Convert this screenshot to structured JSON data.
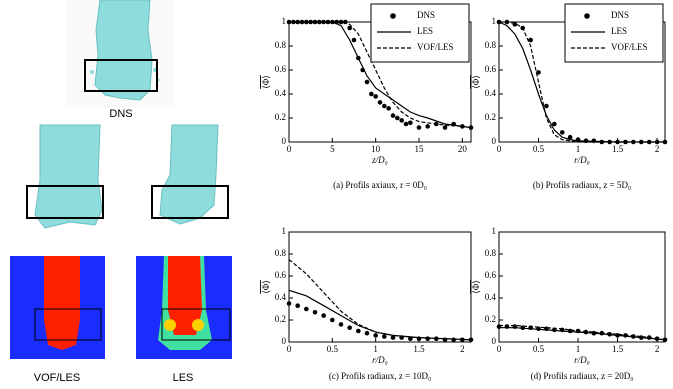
{
  "figure_labels": {
    "top": "DNS",
    "bottom_left": "VOF/LES",
    "bottom_right": "LES"
  },
  "chart_data": [
    {
      "type": "line",
      "caption": "(a) Profils axiaux, r = 0D₀",
      "x_label": "z/D₀",
      "y_label": "⟨Φ⟩",
      "xlim": [
        0,
        21
      ],
      "xticks": [
        0,
        5,
        10,
        15,
        20
      ],
      "ylim": [
        0,
        1
      ],
      "yticks": [
        0,
        0.2,
        0.4,
        0.6,
        0.8,
        1
      ],
      "series": [
        {
          "name": "DNS",
          "style": "markers",
          "color": "#000000",
          "x": [
            0,
            0.5,
            1,
            1.5,
            2,
            2.5,
            3,
            3.5,
            4,
            4.5,
            5,
            5.5,
            6,
            6.5,
            7,
            7.5,
            8,
            8.5,
            9,
            9.5,
            10,
            10.5,
            11,
            11.5,
            12,
            12.5,
            13,
            13.5,
            14,
            15,
            16,
            17,
            18,
            19,
            20,
            21
          ],
          "values": [
            1,
            1,
            1,
            1,
            1,
            1,
            1,
            1,
            1,
            1,
            1,
            1,
            1,
            1,
            0.95,
            0.85,
            0.7,
            0.6,
            0.5,
            0.4,
            0.38,
            0.33,
            0.3,
            0.28,
            0.22,
            0.2,
            0.18,
            0.15,
            0.16,
            0.12,
            0.13,
            0.15,
            0.12,
            0.15,
            0.13,
            0.12
          ]
        },
        {
          "name": "LES",
          "style": "solid",
          "color": "#000000",
          "x": [
            0,
            5,
            6,
            7,
            8,
            9,
            10,
            11,
            12,
            13,
            14,
            15,
            16,
            18,
            20,
            21
          ],
          "values": [
            1,
            1,
            0.97,
            0.85,
            0.7,
            0.55,
            0.45,
            0.4,
            0.35,
            0.3,
            0.25,
            0.22,
            0.2,
            0.15,
            0.13,
            0.12
          ]
        },
        {
          "name": "VOF/LES",
          "style": "dashed",
          "color": "#000000",
          "x": [
            0,
            6,
            7,
            8,
            9,
            10,
            11,
            12,
            13,
            14,
            15,
            16,
            18,
            20,
            21
          ],
          "values": [
            1,
            1,
            0.98,
            0.9,
            0.75,
            0.6,
            0.45,
            0.33,
            0.25,
            0.2,
            0.17,
            0.16,
            0.14,
            0.13,
            0.12
          ]
        }
      ]
    },
    {
      "type": "line",
      "caption": "(b) Profils radiaux, z = 5D₀",
      "x_label": "r/D₀",
      "y_label": "⟨Φ⟩",
      "xlim": [
        0,
        2.1
      ],
      "xticks": [
        0,
        0.5,
        1,
        1.5,
        2
      ],
      "ylim": [
        0,
        1
      ],
      "yticks": [
        0,
        0.2,
        0.4,
        0.6,
        0.8,
        1
      ],
      "series": [
        {
          "name": "DNS",
          "style": "markers",
          "color": "#000000",
          "x": [
            0,
            0.1,
            0.2,
            0.3,
            0.4,
            0.5,
            0.6,
            0.7,
            0.8,
            0.9,
            1,
            1.1,
            1.2,
            1.3,
            1.4,
            1.5,
            1.6,
            1.7,
            1.8,
            1.9,
            2,
            2.1
          ],
          "values": [
            1,
            1,
            0.98,
            0.95,
            0.85,
            0.58,
            0.3,
            0.15,
            0.08,
            0.04,
            0.02,
            0.01,
            0.01,
            0,
            0,
            0,
            0,
            0,
            0,
            0,
            0,
            0
          ]
        },
        {
          "name": "LES",
          "style": "solid",
          "color": "#000000",
          "x": [
            0,
            0.1,
            0.2,
            0.3,
            0.4,
            0.5,
            0.6,
            0.7,
            0.8,
            0.9,
            1,
            1.5,
            2.1
          ],
          "values": [
            1,
            0.97,
            0.9,
            0.78,
            0.6,
            0.4,
            0.22,
            0.1,
            0.04,
            0.02,
            0.01,
            0,
            0
          ]
        },
        {
          "name": "VOF/LES",
          "style": "dashed",
          "color": "#000000",
          "x": [
            0,
            0.1,
            0.2,
            0.3,
            0.4,
            0.5,
            0.6,
            0.7,
            0.8,
            0.9,
            1,
            1.5,
            2.1
          ],
          "values": [
            1,
            1,
            0.99,
            0.95,
            0.8,
            0.5,
            0.2,
            0.06,
            0.02,
            0.01,
            0,
            0,
            0
          ]
        }
      ]
    },
    {
      "type": "line",
      "caption": "(c) Profils radiaux, z = 10D₀",
      "x_label": "r/D₀",
      "y_label": "⟨Φ⟩",
      "xlim": [
        0,
        2.1
      ],
      "xticks": [
        0,
        0.5,
        1,
        1.5,
        2
      ],
      "ylim": [
        0,
        1
      ],
      "yticks": [
        0,
        0.2,
        0.4,
        0.6,
        0.8,
        1
      ],
      "series": [
        {
          "name": "DNS",
          "style": "markers",
          "color": "#000000",
          "x": [
            0,
            0.1,
            0.2,
            0.3,
            0.4,
            0.5,
            0.6,
            0.7,
            0.8,
            0.9,
            1,
            1.1,
            1.2,
            1.3,
            1.4,
            1.5,
            1.6,
            1.7,
            1.8,
            1.9,
            2,
            2.1
          ],
          "values": [
            0.35,
            0.33,
            0.3,
            0.27,
            0.24,
            0.2,
            0.16,
            0.13,
            0.1,
            0.08,
            0.06,
            0.05,
            0.04,
            0.04,
            0.03,
            0.03,
            0.03,
            0.03,
            0.02,
            0.02,
            0.02,
            0.02
          ]
        },
        {
          "name": "LES",
          "style": "solid",
          "color": "#000000",
          "x": [
            0,
            0.2,
            0.4,
            0.6,
            0.8,
            1,
            1.2,
            1.5,
            1.8,
            2.1
          ],
          "values": [
            0.47,
            0.42,
            0.33,
            0.24,
            0.15,
            0.09,
            0.06,
            0.04,
            0.03,
            0.02
          ]
        },
        {
          "name": "VOF/LES",
          "style": "dashed",
          "color": "#000000",
          "x": [
            0,
            0.2,
            0.4,
            0.6,
            0.8,
            1,
            1.2,
            1.5,
            1.8,
            2.1
          ],
          "values": [
            0.75,
            0.62,
            0.45,
            0.28,
            0.16,
            0.09,
            0.06,
            0.04,
            0.03,
            0.02
          ]
        }
      ]
    },
    {
      "type": "line",
      "caption": "(d) Profils radiaux, z = 20D₀",
      "x_label": "r/D₀",
      "y_label": "⟨Φ⟩",
      "xlim": [
        0,
        2.1
      ],
      "xticks": [
        0,
        0.5,
        1,
        1.5,
        2
      ],
      "ylim": [
        0,
        1
      ],
      "yticks": [
        0,
        0.2,
        0.4,
        0.6,
        0.8,
        1
      ],
      "series": [
        {
          "name": "DNS",
          "style": "markers",
          "color": "#000000",
          "x": [
            0,
            0.1,
            0.2,
            0.3,
            0.4,
            0.5,
            0.6,
            0.7,
            0.8,
            0.9,
            1,
            1.1,
            1.2,
            1.3,
            1.4,
            1.5,
            1.6,
            1.7,
            1.8,
            1.9,
            2,
            2.1
          ],
          "values": [
            0.14,
            0.14,
            0.14,
            0.13,
            0.13,
            0.12,
            0.12,
            0.11,
            0.11,
            0.1,
            0.1,
            0.09,
            0.08,
            0.08,
            0.07,
            0.06,
            0.06,
            0.05,
            0.04,
            0.04,
            0.03,
            0.02
          ]
        },
        {
          "name": "LES",
          "style": "solid",
          "color": "#000000",
          "x": [
            0,
            0.2,
            0.4,
            0.6,
            0.8,
            1,
            1.2,
            1.5,
            1.8,
            2.1
          ],
          "values": [
            0.13,
            0.13,
            0.12,
            0.11,
            0.1,
            0.09,
            0.08,
            0.06,
            0.04,
            0.02
          ]
        },
        {
          "name": "VOF/LES",
          "style": "dashed",
          "color": "#000000",
          "x": [
            0,
            0.2,
            0.4,
            0.6,
            0.8,
            1,
            1.2,
            1.5,
            1.8,
            2.1
          ],
          "values": [
            0.15,
            0.15,
            0.14,
            0.13,
            0.12,
            0.1,
            0.09,
            0.07,
            0.05,
            0.02
          ]
        }
      ]
    }
  ]
}
